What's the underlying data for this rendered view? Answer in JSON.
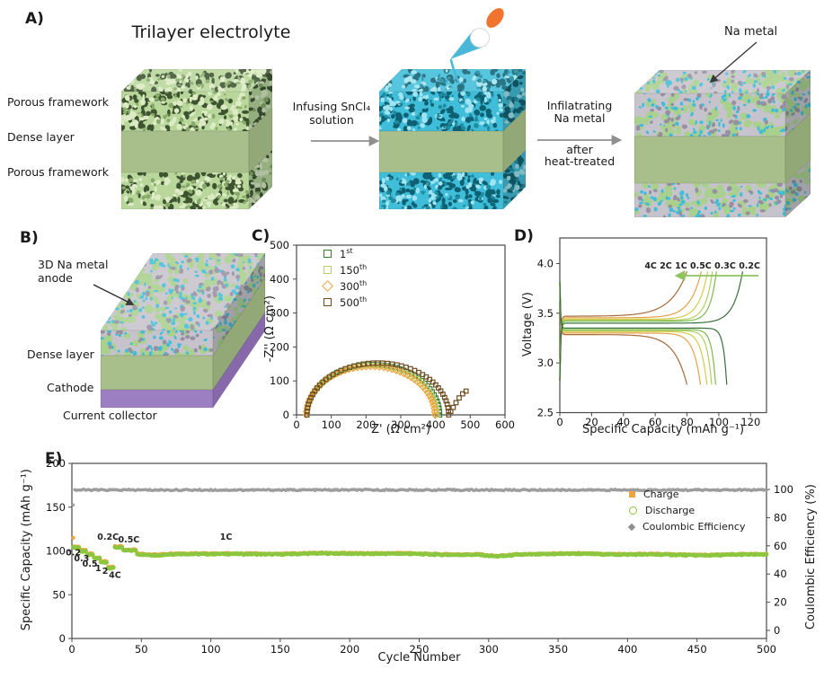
{
  "panels": {
    "a": {
      "label": "A)",
      "title": "Trilayer electrolyte",
      "layer1": "Porous framework",
      "layer2": "Dense layer",
      "layer3": "Porous framework",
      "step1_line1": "Infusing SnCl₄",
      "step1_line2": "solution",
      "step2_line1": "Infilatrating",
      "step2_line2": "Na metal",
      "step2_line3": "after",
      "step2_line4": "heat-treated",
      "na_metal": "Na metal"
    },
    "b": {
      "label": "B)",
      "anode_line1": "3D Na metal",
      "anode_line2": "anode",
      "dense": "Dense layer",
      "cathode": "Cathode",
      "collector": "Current collector"
    },
    "c": {
      "label": "C)"
    },
    "d": {
      "label": "D)"
    },
    "e": {
      "label": "E)"
    }
  },
  "colors": {
    "porous_green": "#b9d69b",
    "pore_shadow": "#3e5330",
    "porous_green_light": "#dcebc4",
    "cyan": "#3fbdd9",
    "cyan_shadow": "#0e6173",
    "cyan_light": "#9fe4f0",
    "gray_metal": "#c7c3cc",
    "gray_shadow": "#978fa2",
    "dense_green": "#a8bf8c",
    "dense_green_top": "#b8cd9c",
    "dense_green_side": "#92a977",
    "purple": "#9c7ec2",
    "purple_side": "#8668ab",
    "arrow_gray": "#8f8f8f",
    "pipette_orange": "#f0742f",
    "pipette_blue": "#49b8d8"
  },
  "chart_data": [
    {
      "id": "C",
      "type": "scatter",
      "desc": "EIS Nyquist plot of symmetric cell at different cycles",
      "xlabel": "Z' (Ω cm²)",
      "ylabel": "-Z'' (Ω cm²)",
      "xlim": [
        0,
        600
      ],
      "ylim": [
        0,
        500
      ],
      "xticks": [
        0,
        100,
        200,
        300,
        400,
        500,
        600
      ],
      "yticks": [
        0,
        100,
        200,
        300,
        400,
        500
      ],
      "legend_position": "top-left-inside",
      "series": [
        {
          "name": "1st",
          "legend_base": "1",
          "legend_sup": "st",
          "color": "#3c7a36",
          "marker": "square",
          "semicircle": {
            "x_start": 30,
            "x_end": 412,
            "peak": 148
          }
        },
        {
          "name": "150th",
          "legend_base": "150",
          "legend_sup": "th",
          "color": "#b5cf6b",
          "marker": "square",
          "semicircle": {
            "x_start": 30,
            "x_end": 404,
            "peak": 146
          }
        },
        {
          "name": "300th",
          "legend_base": "300",
          "legend_sup": "th",
          "color": "#f0a43c",
          "marker": "diamond",
          "semicircle": {
            "x_start": 28,
            "x_end": 398,
            "peak": 142
          }
        },
        {
          "name": "500th",
          "legend_base": "500",
          "legend_sup": "th",
          "color": "#6e4e22",
          "marker": "square",
          "semicircle": {
            "x_start": 30,
            "x_end": 438,
            "peak": 153
          },
          "tail": [
            [
              444,
              10
            ],
            [
              451,
              22
            ],
            [
              459,
              36
            ],
            [
              468,
              50
            ],
            [
              478,
              62
            ],
            [
              488,
              70
            ]
          ]
        }
      ]
    },
    {
      "id": "D",
      "type": "line",
      "desc": "Charge/discharge voltage profiles at various C-rates",
      "xlabel": "Specific Capacity (mAh g⁻¹)",
      "ylabel": "Voltage (V)",
      "xlim": [
        0,
        130
      ],
      "ylim": [
        2.5,
        4.25
      ],
      "xticks": [
        0,
        20,
        40,
        60,
        80,
        100,
        120
      ],
      "yticks": [
        "2.5",
        "3.0",
        "3.5",
        "4.0"
      ],
      "rate_annotation": "4C 2C 1C 0.5C 0.3C 0.2C",
      "arrow_color": "#8fc35e",
      "charge_cutoff_v": 3.92,
      "discharge_cutoff_v": 2.78,
      "series": [
        {
          "rate": "4C",
          "color": "#a2622e",
          "charge_plateau": 3.47,
          "charge_end": 80,
          "discharge_plateau": 3.285,
          "discharge_end": 80,
          "knee_charge": 0.13,
          "knee_discharge": 0.1
        },
        {
          "rate": "2C",
          "color": "#e59b3d",
          "charge_plateau": 3.455,
          "charge_end": 89,
          "discharge_plateau": 3.3,
          "discharge_end": 88.5,
          "knee_charge": 0.08,
          "knee_discharge": 0.05
        },
        {
          "rate": "1C",
          "color": "#d3c83f",
          "charge_plateau": 3.44,
          "charge_end": 93,
          "discharge_plateau": 3.315,
          "discharge_end": 92.5,
          "knee_charge": 0.06,
          "knee_discharge": 0.04
        },
        {
          "rate": "0.5C",
          "color": "#a9cc55",
          "charge_plateau": 3.43,
          "charge_end": 96,
          "discharge_plateau": 3.325,
          "discharge_end": 95.5,
          "knee_charge": 0.045,
          "knee_discharge": 0.03
        },
        {
          "rate": "0.3C",
          "color": "#76b545",
          "charge_plateau": 3.42,
          "charge_end": 98.5,
          "discharge_plateau": 3.335,
          "discharge_end": 98,
          "knee_charge": 0.04,
          "knee_discharge": 0.025
        },
        {
          "rate": "0.2C",
          "color": "#2d6830",
          "charge_plateau": 3.4,
          "charge_end": 115,
          "discharge_plateau": 3.35,
          "discharge_end": 105,
          "knee_charge": 0.05,
          "knee_discharge": 0.02
        }
      ]
    },
    {
      "id": "E",
      "type": "scatter",
      "desc": "Long-term cycling performance over 500 cycles",
      "xlabel": "Cycle Number",
      "ylabel_left": "Specific Capacity (mAh g⁻¹)",
      "ylabel_right": "Coulombic Efficiency (%)",
      "xlim": [
        0,
        500
      ],
      "ylim_left": [
        0,
        200
      ],
      "ylim_right": [
        0,
        100
      ],
      "xticks": [
        0,
        50,
        100,
        150,
        200,
        250,
        300,
        350,
        400,
        450,
        500
      ],
      "yticks_left": [
        0,
        50,
        100,
        150,
        200
      ],
      "yticks_right": [
        0,
        20,
        40,
        60,
        80,
        100
      ],
      "rate_segments": [
        {
          "rate": "0.2C",
          "from": 1,
          "to": 5,
          "discharge": 104,
          "charge": 105.5
        },
        {
          "rate": "0.3C",
          "from": 6,
          "to": 10,
          "discharge": 99.5,
          "charge": 100.8
        },
        {
          "rate": "0.5C",
          "from": 11,
          "to": 15,
          "discharge": 95.5,
          "charge": 96.6
        },
        {
          "rate": "1C",
          "from": 16,
          "to": 20,
          "discharge": 91.5,
          "charge": 92.6
        },
        {
          "rate": "2C",
          "from": 21,
          "to": 25,
          "discharge": 87,
          "charge": 88
        },
        {
          "rate": "4C",
          "from": 26,
          "to": 30,
          "discharge": 80.5,
          "charge": 81.3
        },
        {
          "rate": "0.2C",
          "from": 31,
          "to": 36,
          "discharge": 104,
          "charge": 105
        },
        {
          "rate": "0.5C",
          "from": 37,
          "to": 46,
          "discharge": 100.5,
          "charge": 101.3
        }
      ],
      "long_segment": {
        "rate": "1C",
        "from": 47,
        "to": 500,
        "start": 97,
        "end": 95.6,
        "dips": [
          {
            "at": 58,
            "depth": 2.5,
            "width": 180
          },
          {
            "at": 306,
            "depth": 2.2,
            "width": 120
          }
        ]
      },
      "first_cycle_charge": 115,
      "coulombic_efficiency": {
        "first": 89,
        "steady": 99.6
      },
      "annotations": [
        {
          "text": "0.2",
          "x": 1,
          "y": 95
        },
        {
          "text": "0.3",
          "x": 7,
          "y": 88
        },
        {
          "text": "0.5",
          "x": 13,
          "y": 82
        },
        {
          "text": "1",
          "x": 19,
          "y": 77
        },
        {
          "text": "2",
          "x": 24,
          "y": 74
        },
        {
          "text": "4C",
          "x": 31,
          "y": 69
        },
        {
          "text": "0.2C",
          "x": 26,
          "y": 113
        },
        {
          "text": "0.5C",
          "x": 41,
          "y": 110
        },
        {
          "text": "1C",
          "x": 111,
          "y": 113
        }
      ],
      "legend": [
        {
          "label": "Charge",
          "color": "#f0a43c",
          "marker": "square"
        },
        {
          "label": "Discharge",
          "color": "#8cc63f",
          "marker": "circle-open"
        },
        {
          "label": "Coulombic Efficiency",
          "color": "#909090",
          "marker": "diamond"
        }
      ],
      "series_colors": {
        "charge": "#f0a43c",
        "discharge": "#8cc63f",
        "efficiency": "#9b9b9b"
      }
    }
  ]
}
